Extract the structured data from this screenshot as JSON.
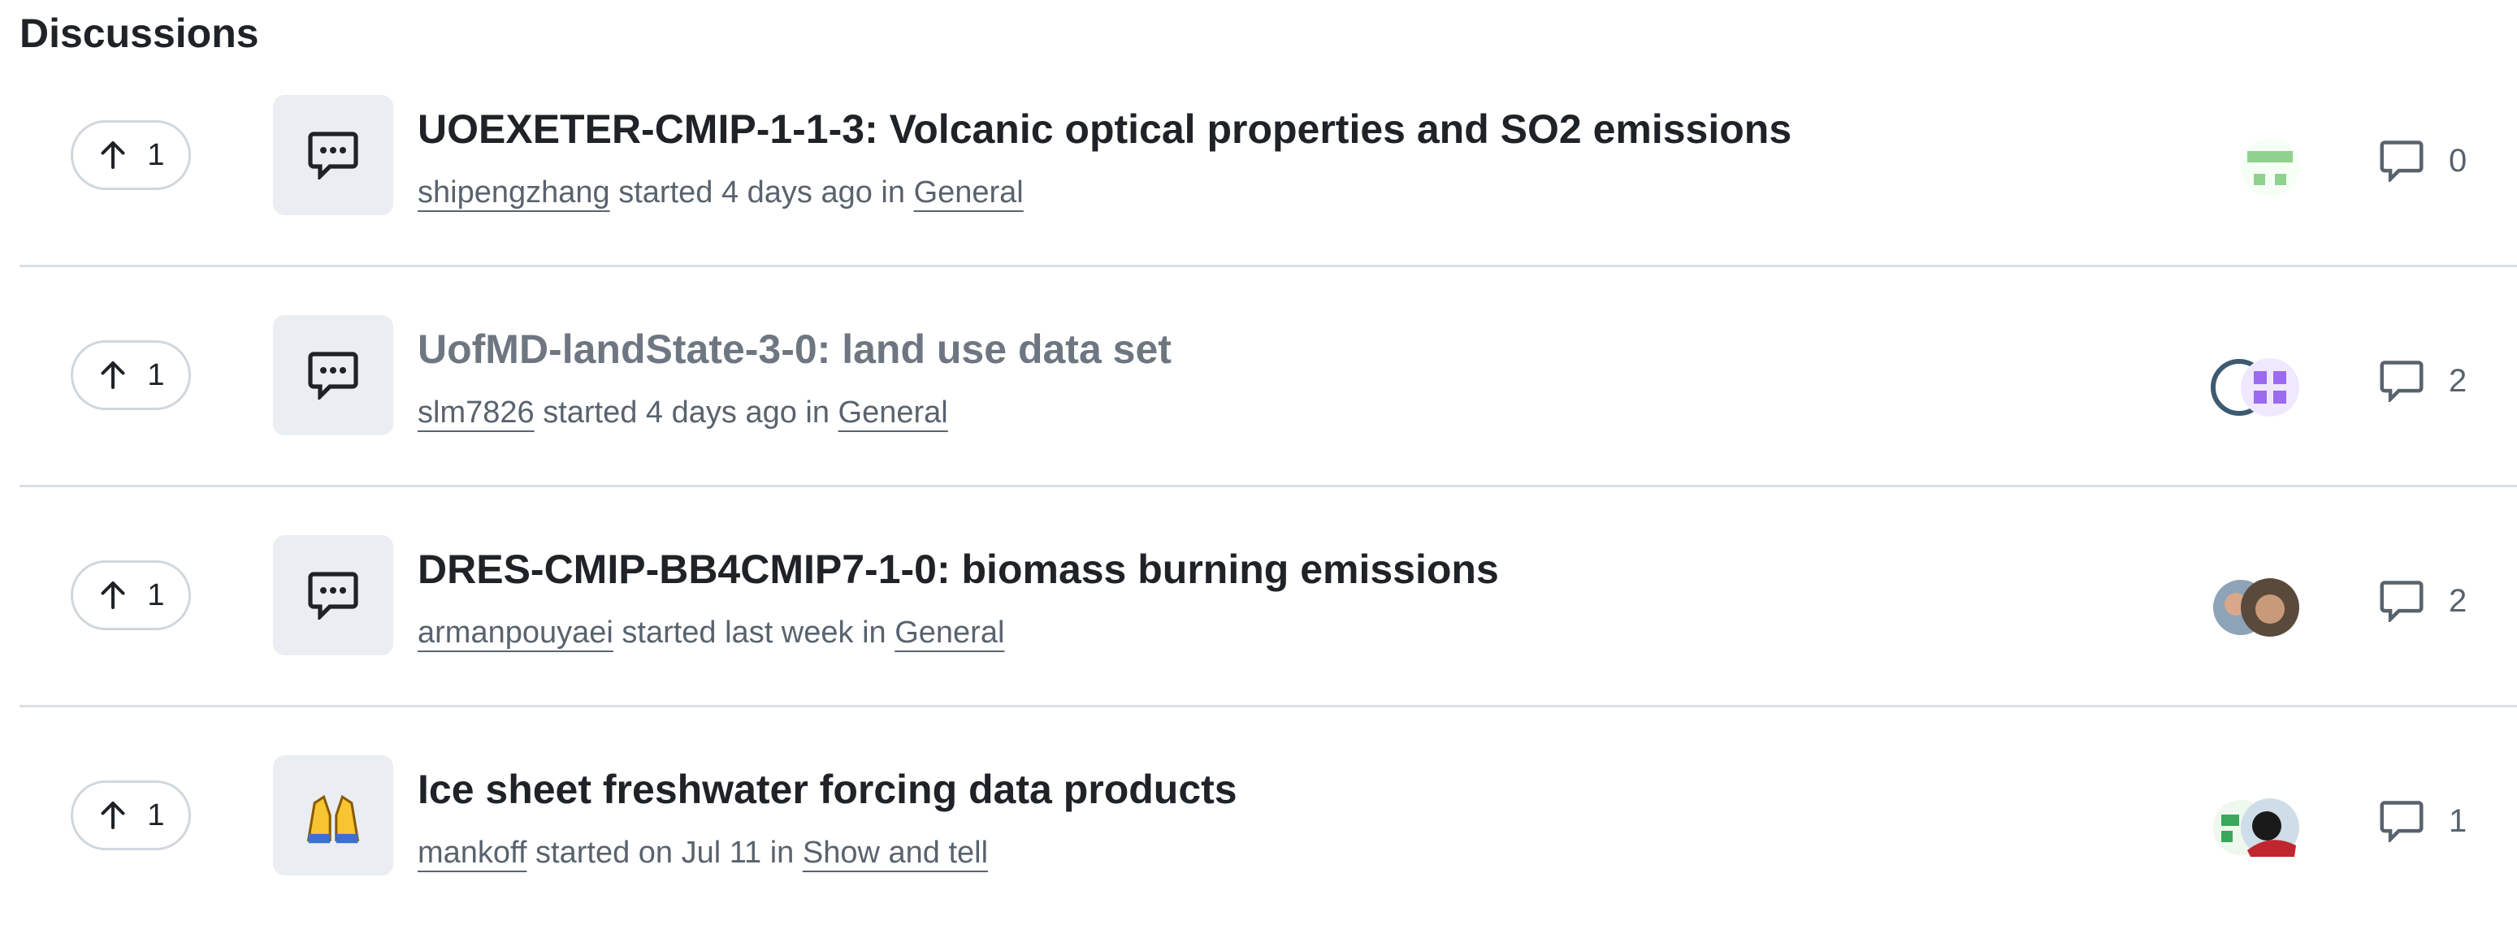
{
  "header": {
    "title": "Discussions"
  },
  "discussions": [
    {
      "upvotes": "1",
      "title": "UOEXETER-CMIP-1-1-3: Volcanic optical properties and SO2 emissions",
      "author": "shipengzhang",
      "meta": "started 4 days ago in",
      "category": "General",
      "comments": "0"
    },
    {
      "upvotes": "1",
      "title": "UofMD-landState-3-0: land use data set",
      "author": "slm7826",
      "meta": "started 4 days ago in",
      "category": "General",
      "comments": "2"
    },
    {
      "upvotes": "1",
      "title": "DRES-CMIP-BB4CMIP7-1-0: biomass burning emissions",
      "author": "armanpouyaei",
      "meta": "started last week in",
      "category": "General",
      "comments": "2"
    },
    {
      "upvotes": "1",
      "title": "Ice sheet freshwater forcing data products",
      "author": "mankoff",
      "meta": "started on Jul 11 in",
      "category": "Show and tell",
      "comments": "1"
    }
  ]
}
